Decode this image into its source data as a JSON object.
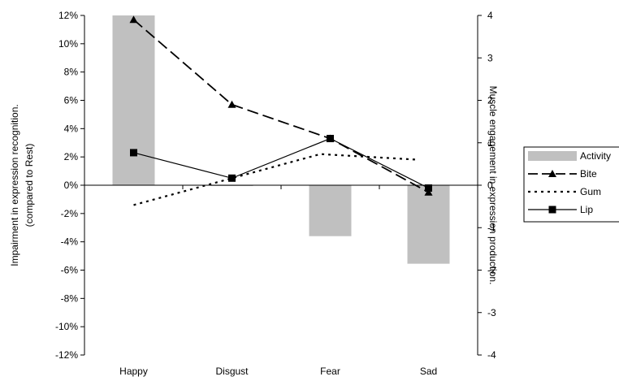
{
  "chart_data": {
    "type": "bar",
    "categories": [
      "Happy",
      "Disgust",
      "Fear",
      "Sad"
    ],
    "left_axis": {
      "label_line1": "Impairment in expression recognition.",
      "label_line2": "(compared to Rest)",
      "ylim": [
        -12,
        12
      ],
      "ticks": [
        "12%",
        "10%",
        "8%",
        "6%",
        "4%",
        "2%",
        "0%",
        "-2%",
        "-4%",
        "-6%",
        "-8%",
        "-10%",
        "-12%"
      ]
    },
    "right_axis": {
      "label": "Muscle engagement in expression production.",
      "ylim": [
        -4,
        4
      ],
      "ticks": [
        "4",
        "3",
        "2",
        "1",
        "0",
        "-1",
        "-2",
        "-3",
        "-4"
      ]
    },
    "series": [
      {
        "name": "Activity",
        "kind": "bar",
        "axis": "right",
        "color": "#c0c0c0",
        "values": [
          4.0,
          0.0,
          -1.2,
          -1.85
        ]
      },
      {
        "name": "Bite",
        "kind": "line",
        "axis": "left",
        "style": "long-dash",
        "marker": "triangle",
        "color": "#000000",
        "values": [
          11.7,
          5.7,
          3.3,
          -0.5
        ]
      },
      {
        "name": "Gum",
        "kind": "line",
        "axis": "left",
        "style": "dotted",
        "marker": "none",
        "color": "#000000",
        "x": [
          0,
          1.9,
          2.9
        ],
        "values": [
          -1.4,
          2.2,
          1.8
        ]
      },
      {
        "name": "Lip",
        "kind": "line",
        "axis": "left",
        "style": "solid",
        "marker": "square",
        "color": "#000000",
        "values": [
          2.3,
          0.5,
          3.3,
          -0.2
        ]
      }
    ],
    "legend_position": "right",
    "grid": false
  }
}
